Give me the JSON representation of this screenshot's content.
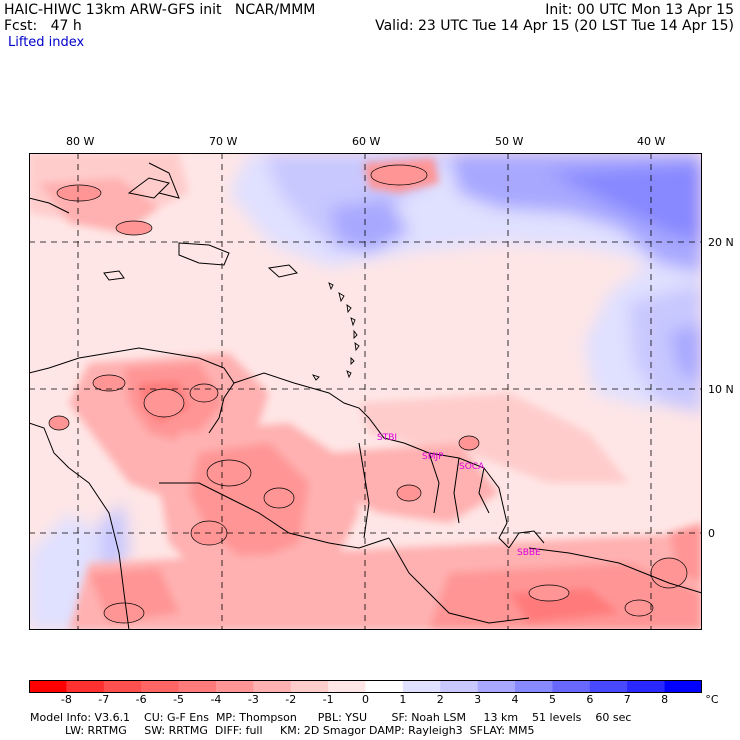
{
  "header": {
    "line1_left": "HAIC-HIWC 13km ARW-GFS init   NCAR/MMM",
    "line1_right": "Init: 00 UTC Mon 13 Apr 15",
    "line2_left": "Fcst:   47 h",
    "line2_right": "Valid: 23 UTC Tue 14 Apr 15 (20 LST Tue 14 Apr 15)",
    "field": "Lifted index"
  },
  "map": {
    "lon_labels": [
      "80 W",
      "70 W",
      "60 W",
      "50 W",
      "40 W"
    ],
    "lat_labels": [
      "20 N",
      "10 N",
      "0"
    ],
    "stations": [
      "STBI",
      "SMJP",
      "SOCA",
      "SBBE"
    ]
  },
  "colorbar": {
    "levels": [
      "-8",
      "-7",
      "-6",
      "-5",
      "-4",
      "-3",
      "-2",
      "-1",
      "0",
      "1",
      "2",
      "3",
      "4",
      "5",
      "6",
      "7",
      "8"
    ],
    "unit": "°C",
    "colors": [
      "#ff0000",
      "#ff3030",
      "#ff5050",
      "#ff6565",
      "#ff7a7a",
      "#ff9595",
      "#ffb0b0",
      "#ffcccc",
      "#ffe6e6",
      "#ffffff",
      "#e0e0ff",
      "#c8c8ff",
      "#a8a8ff",
      "#8888ff",
      "#6868ff",
      "#4848ff",
      "#2828ff",
      "#0000ff"
    ]
  },
  "model_info": {
    "line1": "Model Info: V3.6.1    CU: G-F Ens  MP: Thompson      PBL: YSU       SF: Noah LSM     13 km    51 levels    60 sec",
    "line2": "          LW: RRTMG     SW: RRTMG  DIFF: full     KM: 2D Smagor DAMP: Rayleigh3  SFLAY: MM5"
  }
}
